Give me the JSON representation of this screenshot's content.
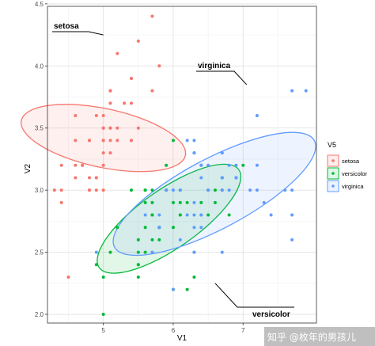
{
  "chart_data": {
    "type": "scatter",
    "title": "",
    "xlabel": "V1",
    "ylabel": "V2",
    "xlim": [
      4.2,
      8.05
    ],
    "ylim": [
      1.93,
      4.48
    ],
    "x_ticks": [
      "5",
      "6",
      "7"
    ],
    "x_tick_values": [
      5,
      6,
      7
    ],
    "y_ticks": [
      "2.0",
      "2.5",
      "3.0",
      "3.5",
      "4.0",
      "4.5"
    ],
    "y_tick_values": [
      2.0,
      2.5,
      3.0,
      3.5,
      4.0,
      4.5
    ],
    "grid": true,
    "legend": {
      "title": "V5",
      "placement": "right",
      "entries": [
        "setosa",
        "versicolor",
        "virginica"
      ]
    },
    "series": [
      {
        "name": "setosa",
        "color": "#F8766D",
        "ellipse": {
          "cx": 5.0,
          "cy": 3.42,
          "rx": 0.42,
          "ry": 1.2,
          "angle": 78
        },
        "points": [
          [
            5.1,
            3.5
          ],
          [
            4.9,
            3.0
          ],
          [
            4.7,
            3.2
          ],
          [
            4.6,
            3.1
          ],
          [
            5.0,
            3.6
          ],
          [
            5.4,
            3.9
          ],
          [
            4.6,
            3.4
          ],
          [
            5.0,
            3.4
          ],
          [
            4.4,
            2.9
          ],
          [
            4.9,
            3.1
          ],
          [
            5.4,
            3.7
          ],
          [
            4.8,
            3.4
          ],
          [
            4.8,
            3.0
          ],
          [
            4.3,
            3.0
          ],
          [
            5.8,
            4.0
          ],
          [
            5.7,
            4.4
          ],
          [
            5.4,
            3.9
          ],
          [
            5.1,
            3.5
          ],
          [
            5.7,
            3.8
          ],
          [
            5.1,
            3.8
          ],
          [
            5.4,
            3.4
          ],
          [
            5.1,
            3.7
          ],
          [
            4.6,
            3.6
          ],
          [
            5.1,
            3.3
          ],
          [
            4.8,
            3.4
          ],
          [
            5.0,
            3.0
          ],
          [
            5.0,
            3.4
          ],
          [
            5.2,
            3.5
          ],
          [
            5.2,
            3.4
          ],
          [
            4.7,
            3.2
          ],
          [
            4.8,
            3.1
          ],
          [
            5.4,
            3.4
          ],
          [
            5.2,
            4.1
          ],
          [
            5.5,
            4.2
          ],
          [
            4.9,
            3.1
          ],
          [
            5.0,
            3.2
          ],
          [
            5.5,
            3.5
          ],
          [
            4.9,
            3.6
          ],
          [
            4.4,
            3.0
          ],
          [
            5.1,
            3.4
          ],
          [
            5.0,
            3.5
          ],
          [
            4.5,
            2.3
          ],
          [
            4.4,
            3.2
          ],
          [
            5.0,
            3.5
          ],
          [
            5.1,
            3.8
          ],
          [
            4.8,
            3.0
          ],
          [
            5.1,
            3.8
          ],
          [
            4.6,
            3.2
          ],
          [
            5.3,
            3.7
          ],
          [
            5.0,
            3.3
          ]
        ]
      },
      {
        "name": "versicolor",
        "color": "#00BA38",
        "ellipse": {
          "cx": 5.94,
          "cy": 2.77,
          "rx": 1.22,
          "ry": 0.42,
          "angle": 35
        },
        "points": [
          [
            7.0,
            3.2
          ],
          [
            6.4,
            3.2
          ],
          [
            6.9,
            3.1
          ],
          [
            5.5,
            2.3
          ],
          [
            6.5,
            2.8
          ],
          [
            5.7,
            2.8
          ],
          [
            6.3,
            3.3
          ],
          [
            4.9,
            2.4
          ],
          [
            6.6,
            2.9
          ],
          [
            5.2,
            2.7
          ],
          [
            5.0,
            2.0
          ],
          [
            5.9,
            3.0
          ],
          [
            6.0,
            2.2
          ],
          [
            6.1,
            2.9
          ],
          [
            5.6,
            2.9
          ],
          [
            6.7,
            3.1
          ],
          [
            5.6,
            3.0
          ],
          [
            5.8,
            2.7
          ],
          [
            6.2,
            2.2
          ],
          [
            5.6,
            2.5
          ],
          [
            5.9,
            3.2
          ],
          [
            6.1,
            2.8
          ],
          [
            6.3,
            2.5
          ],
          [
            6.1,
            2.8
          ],
          [
            6.4,
            2.9
          ],
          [
            6.6,
            3.0
          ],
          [
            6.8,
            2.8
          ],
          [
            6.7,
            3.0
          ],
          [
            6.0,
            2.9
          ],
          [
            5.7,
            2.6
          ],
          [
            5.5,
            2.4
          ],
          [
            5.5,
            2.4
          ],
          [
            5.8,
            2.7
          ],
          [
            6.0,
            2.7
          ],
          [
            5.4,
            3.0
          ],
          [
            6.0,
            3.4
          ],
          [
            6.7,
            3.1
          ],
          [
            6.3,
            2.3
          ],
          [
            5.6,
            3.0
          ],
          [
            5.5,
            2.5
          ],
          [
            5.5,
            2.6
          ],
          [
            6.1,
            3.0
          ],
          [
            5.8,
            2.6
          ],
          [
            5.0,
            2.3
          ],
          [
            5.6,
            2.7
          ],
          [
            5.7,
            3.0
          ],
          [
            5.7,
            2.9
          ],
          [
            6.2,
            2.9
          ],
          [
            5.1,
            2.5
          ],
          [
            5.7,
            2.8
          ]
        ]
      },
      {
        "name": "virginica",
        "color": "#619CFF",
        "ellipse": {
          "cx": 6.59,
          "cy": 2.97,
          "rx": 1.62,
          "ry": 0.5,
          "angle": 28
        },
        "points": [
          [
            6.3,
            3.3
          ],
          [
            5.8,
            2.7
          ],
          [
            7.1,
            3.0
          ],
          [
            6.3,
            2.9
          ],
          [
            6.5,
            3.0
          ],
          [
            7.6,
            3.0
          ],
          [
            4.9,
            2.5
          ],
          [
            7.3,
            2.9
          ],
          [
            6.7,
            2.5
          ],
          [
            7.2,
            3.6
          ],
          [
            6.5,
            3.2
          ],
          [
            6.4,
            2.7
          ],
          [
            6.8,
            3.0
          ],
          [
            5.7,
            2.5
          ],
          [
            5.8,
            2.8
          ],
          [
            6.4,
            3.2
          ],
          [
            6.5,
            3.0
          ],
          [
            7.7,
            3.8
          ],
          [
            7.7,
            2.6
          ],
          [
            6.0,
            2.2
          ],
          [
            6.9,
            3.2
          ],
          [
            5.6,
            2.8
          ],
          [
            7.7,
            2.8
          ],
          [
            6.3,
            2.7
          ],
          [
            6.7,
            3.3
          ],
          [
            7.2,
            3.2
          ],
          [
            6.2,
            2.8
          ],
          [
            6.1,
            3.0
          ],
          [
            6.4,
            2.8
          ],
          [
            7.2,
            3.0
          ],
          [
            7.4,
            2.8
          ],
          [
            7.9,
            3.8
          ],
          [
            6.4,
            2.8
          ],
          [
            6.3,
            2.8
          ],
          [
            6.1,
            2.6
          ],
          [
            7.7,
            3.0
          ],
          [
            6.3,
            3.4
          ],
          [
            6.4,
            3.1
          ],
          [
            6.0,
            3.0
          ],
          [
            6.9,
            3.1
          ],
          [
            6.7,
            3.1
          ],
          [
            6.9,
            3.1
          ],
          [
            5.8,
            2.7
          ],
          [
            6.8,
            3.2
          ],
          [
            6.7,
            3.3
          ],
          [
            6.7,
            3.0
          ],
          [
            6.3,
            2.5
          ],
          [
            6.5,
            3.0
          ],
          [
            6.2,
            3.4
          ],
          [
            5.9,
            3.0
          ]
        ]
      }
    ],
    "annotations": [
      {
        "text": "setosa",
        "target": [
          5.0,
          4.25
        ]
      },
      {
        "text": "virginica",
        "target": [
          7.05,
          3.85
        ]
      },
      {
        "text": "versicolor",
        "target": [
          6.6,
          2.25
        ]
      }
    ]
  },
  "watermark": "知乎 @枚年的男孩儿"
}
